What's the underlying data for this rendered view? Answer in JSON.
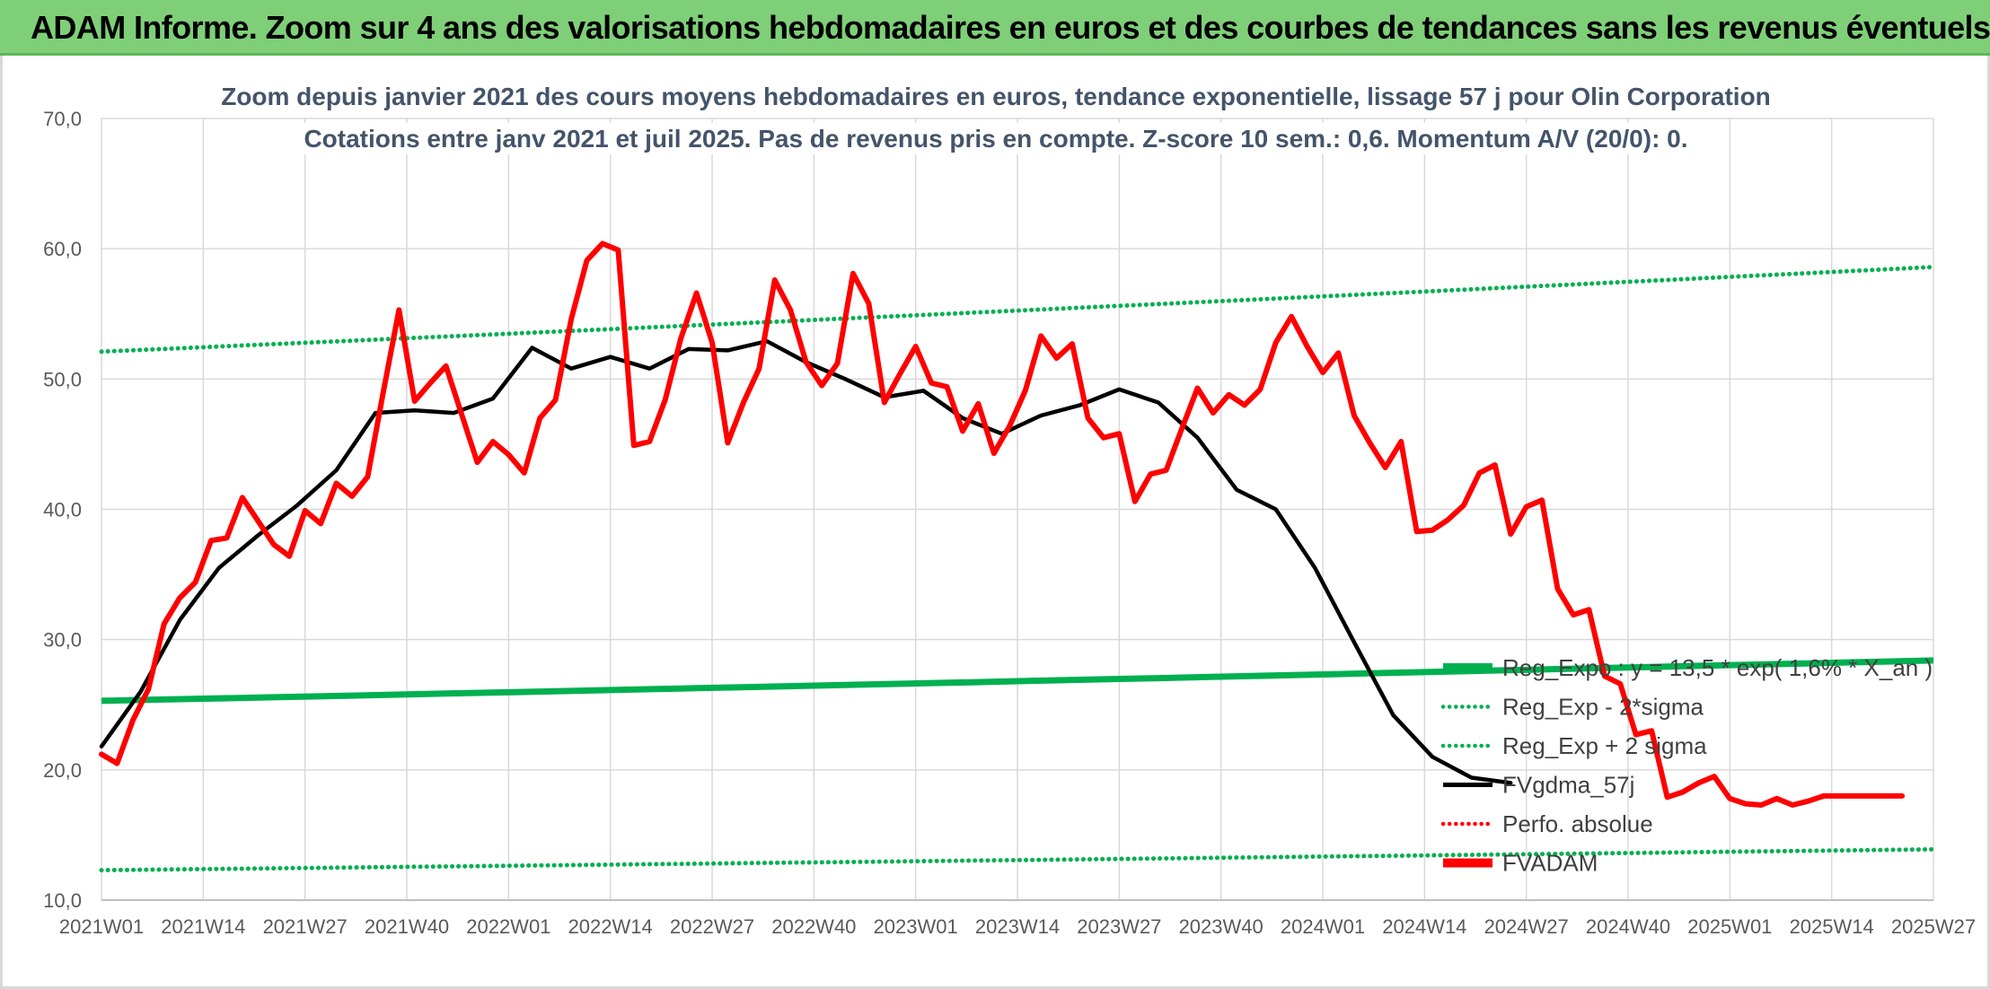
{
  "header": {
    "banner_text": "ADAM Informe. Zoom sur 4 ans des valorisations hebdomadaires en euros et des courbes de tendances sans les revenus éventuels"
  },
  "colors": {
    "banner_bg": "#7fcf78",
    "green": "#00b050",
    "black": "#000000",
    "red": "#ff0000",
    "grid": "#d9d9d9",
    "title_text": "#44546a"
  },
  "chart_data": {
    "type": "line",
    "title": "Zoom depuis janvier 2021 des cours moyens hebdomadaires en euros, tendance exponentielle, lissage 57 j pour Olin Corporation",
    "subtitle": "Cotations entre janv 2021 et juil 2025. Pas de revenus pris en compte. Z-score 10 sem.: 0,6. Momentum A/V (20/0): 0.",
    "xlabel": "",
    "ylabel": "",
    "ylim": [
      10,
      70
    ],
    "yticks": [
      "10,0",
      "20,0",
      "30,0",
      "40,0",
      "50,0",
      "60,0",
      "70,0"
    ],
    "x_tick_labels": [
      "2021W01",
      "2021W14",
      "2021W27",
      "2021W40",
      "2022W01",
      "2022W14",
      "2022W27",
      "2022W40",
      "2023W01",
      "2023W14",
      "2023W27",
      "2023W40",
      "2024W01",
      "2024W14",
      "2024W27",
      "2024W40",
      "2025W01",
      "2025W14",
      "2025W27"
    ],
    "grid": true,
    "legend_position": "bottom-right",
    "legend": [
      {
        "label": "Reg_Expo : y = 13,5 * exp( 1,6% * X_an )",
        "style": "solid-thick",
        "color": "#00b050"
      },
      {
        "label": "Reg_Exp - 2*sigma",
        "style": "dotted",
        "color": "#00b050"
      },
      {
        "label": "Reg_Exp + 2 sigma",
        "style": "dotted",
        "color": "#00b050"
      },
      {
        "label": "FVgdma_57j",
        "style": "solid",
        "color": "#000000"
      },
      {
        "label": "Perfo. absolue",
        "style": "dotted",
        "color": "#ff0000"
      },
      {
        "label": "FVADAM",
        "style": "solid-thick",
        "color": "#ff0000"
      }
    ],
    "series": [
      {
        "name": "Reg_Expo : y = 13,5 * exp( 1,6% * X_an )",
        "endpoints": [
          25.3,
          28.4
        ]
      },
      {
        "name": "Reg_Exp - 2*sigma",
        "endpoints": [
          12.3,
          13.9
        ]
      },
      {
        "name": "Reg_Exp + 2 sigma",
        "endpoints": [
          52.1,
          58.6
        ]
      },
      {
        "name": "FVgdma_57j",
        "x_week_index": [
          0,
          5,
          10,
          15,
          20,
          25,
          30,
          35,
          40,
          45,
          50,
          55,
          60,
          65,
          70,
          75,
          80,
          85,
          90,
          95,
          100,
          105,
          110,
          115,
          120,
          125,
          130,
          135,
          140,
          145,
          150,
          155,
          160,
          165,
          170,
          175,
          180,
          185,
          190,
          195,
          200,
          205,
          210,
          215,
          220,
          225,
          230
        ],
        "values": [
          21.8,
          26.0,
          31.5,
          35.5,
          38.0,
          40.3,
          43.0,
          47.4,
          47.6,
          47.4,
          48.5,
          52.4,
          50.8,
          51.7,
          50.8,
          52.3,
          52.2,
          52.9,
          51.3,
          50.0,
          48.6,
          49.1,
          47.0,
          45.8,
          47.2,
          48.0,
          49.2,
          48.2,
          45.5,
          41.5,
          40.0,
          35.5,
          29.8,
          24.2,
          21.0,
          19.4,
          19.0
        ]
      },
      {
        "name": "FVADAM",
        "x_week_index": [
          0,
          2,
          4,
          6,
          8,
          10,
          12,
          14,
          16,
          18,
          20,
          22,
          24,
          26,
          28,
          30,
          32,
          34,
          36,
          38,
          40,
          42,
          44,
          46,
          48,
          50,
          52,
          54,
          56,
          58,
          60,
          62,
          64,
          66,
          68,
          70,
          72,
          74,
          76,
          78,
          80,
          82,
          84,
          86,
          88,
          90,
          92,
          94,
          96,
          98,
          100,
          102,
          104,
          106,
          108,
          110,
          112,
          114,
          116,
          118,
          120,
          122,
          124,
          126,
          128,
          130,
          132,
          134,
          136,
          138,
          140,
          142,
          144,
          146,
          148,
          150,
          152,
          154,
          156,
          158,
          160,
          162,
          164,
          166,
          168,
          170,
          172,
          174,
          176,
          178,
          180,
          182,
          184,
          186,
          188,
          190,
          192,
          194,
          196,
          198,
          200,
          202,
          204,
          206,
          208,
          210,
          212,
          214,
          216,
          218,
          220,
          222,
          224,
          226,
          228,
          230
        ],
        "values": [
          21.2,
          20.5,
          23.8,
          26.2,
          31.2,
          33.2,
          34.4,
          37.6,
          37.8,
          40.9,
          39.1,
          37.3,
          36.4,
          39.9,
          38.9,
          42.0,
          41.0,
          42.5,
          49.0,
          55.3,
          48.3,
          49.7,
          51.0,
          47.3,
          43.6,
          45.2,
          44.2,
          42.8,
          47.0,
          48.4,
          54.6,
          59.1,
          60.4,
          59.9,
          44.9,
          45.2,
          48.4,
          53.1,
          56.6,
          52.8,
          45.1,
          48.2,
          50.8,
          57.6,
          55.3,
          51.3,
          49.5,
          51.2,
          58.1,
          55.8,
          48.2,
          50.4,
          52.5,
          49.7,
          49.4,
          46.0,
          48.1,
          44.3,
          46.4,
          49.1,
          53.3,
          51.6,
          52.7,
          47.0,
          45.5,
          45.8,
          40.6,
          42.7,
          43.0,
          46.2,
          49.3,
          47.4,
          48.8,
          48.0,
          49.2,
          52.8,
          54.8,
          52.5,
          50.5,
          52.0,
          47.2,
          45.1,
          43.2,
          45.2,
          38.3,
          38.4,
          39.2,
          40.3,
          42.8,
          43.4,
          38.1,
          40.2,
          40.7,
          33.9,
          31.9,
          32.3,
          27.2,
          26.6,
          22.7,
          23.0,
          17.9,
          18.3,
          19.0,
          19.5,
          17.8,
          17.4,
          17.3,
          17.8,
          17.3,
          17.6,
          18.0,
          18.0,
          18.0,
          18.0,
          18.0,
          18.0
        ]
      }
    ]
  }
}
